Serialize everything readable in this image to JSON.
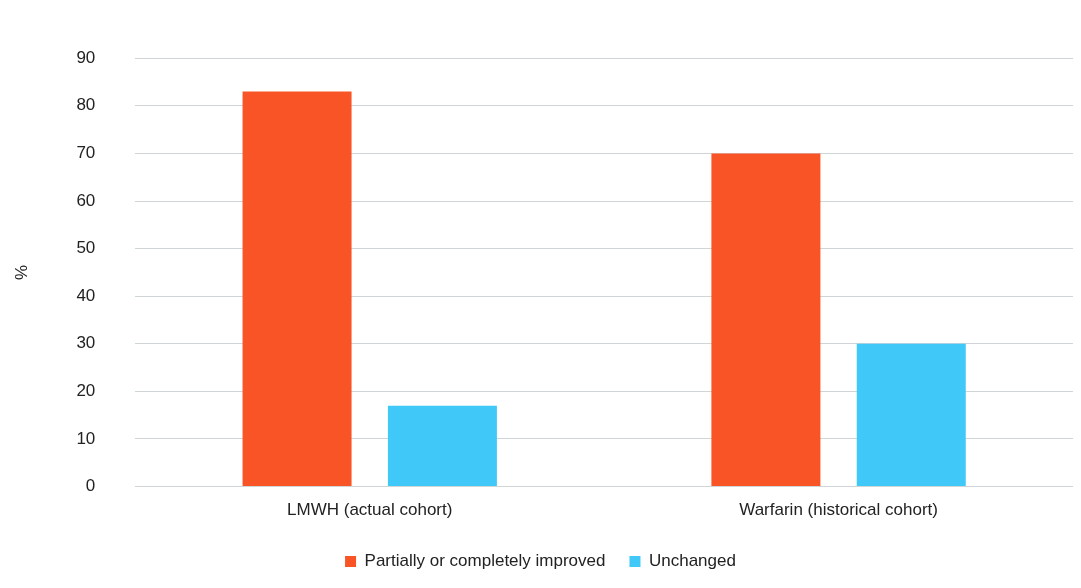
{
  "chart_data": {
    "type": "bar",
    "ylabel": "%",
    "categories": [
      "LMWH (actual cohort)",
      "Warfarin (historical cohort)"
    ],
    "series": [
      {
        "name": "Partially or completely improved",
        "color": "#f95426",
        "values": [
          83,
          70
        ]
      },
      {
        "name": "Unchanged",
        "color": "#3fc8f8",
        "values": [
          17,
          30
        ]
      }
    ],
    "ylim": [
      0,
      90
    ],
    "yticks": [
      0,
      10,
      20,
      30,
      40,
      50,
      60,
      70,
      80,
      90
    ],
    "grid": "y",
    "legend": "bottom"
  }
}
